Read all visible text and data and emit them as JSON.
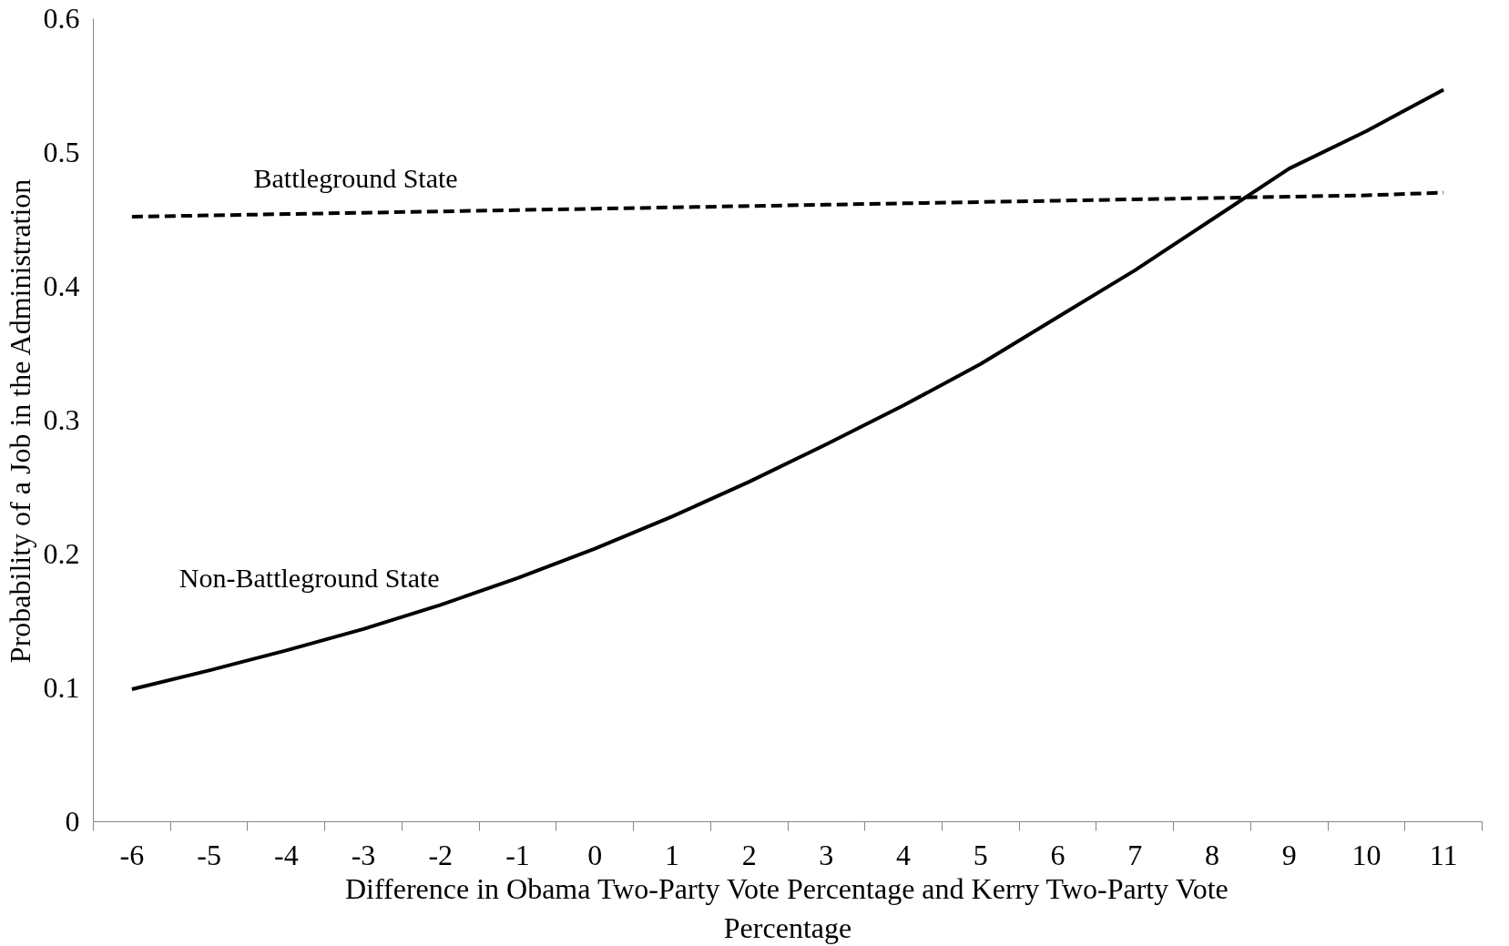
{
  "chart_data": {
    "type": "line",
    "xlabel": "Difference in Obama Two-Party Vote Percentage and Kerry Two-Party Vote Percentage",
    "ylabel": "Probability of a Job in the Administration",
    "categories": [
      "-6",
      "-5",
      "-4",
      "-3",
      "-2",
      "-1",
      "0",
      "1",
      "2",
      "3",
      "4",
      "5",
      "6",
      "7",
      "8",
      "9",
      "10",
      "11"
    ],
    "ylim": [
      0,
      0.6
    ],
    "yticks": [
      0,
      0.1,
      0.2,
      0.3,
      0.4,
      0.5,
      0.6
    ],
    "grid": false,
    "legend": false,
    "marker": "none",
    "series": [
      {
        "name": "Battleground State",
        "color": "#000000",
        "line_style": "dashed",
        "values": [
          0.452,
          0.453,
          0.454,
          0.455,
          0.456,
          0.457,
          0.458,
          0.459,
          0.46,
          0.461,
          0.462,
          0.463,
          0.464,
          0.465,
          0.466,
          0.467,
          0.468,
          0.47
        ]
      },
      {
        "name": "Non-Battleground State",
        "color": "#000000",
        "line_style": "solid",
        "values": [
          0.099,
          0.113,
          0.128,
          0.144,
          0.162,
          0.182,
          0.204,
          0.228,
          0.254,
          0.282,
          0.311,
          0.342,
          0.377,
          0.412,
          0.45,
          0.488,
          0.516,
          0.547
        ]
      }
    ]
  }
}
